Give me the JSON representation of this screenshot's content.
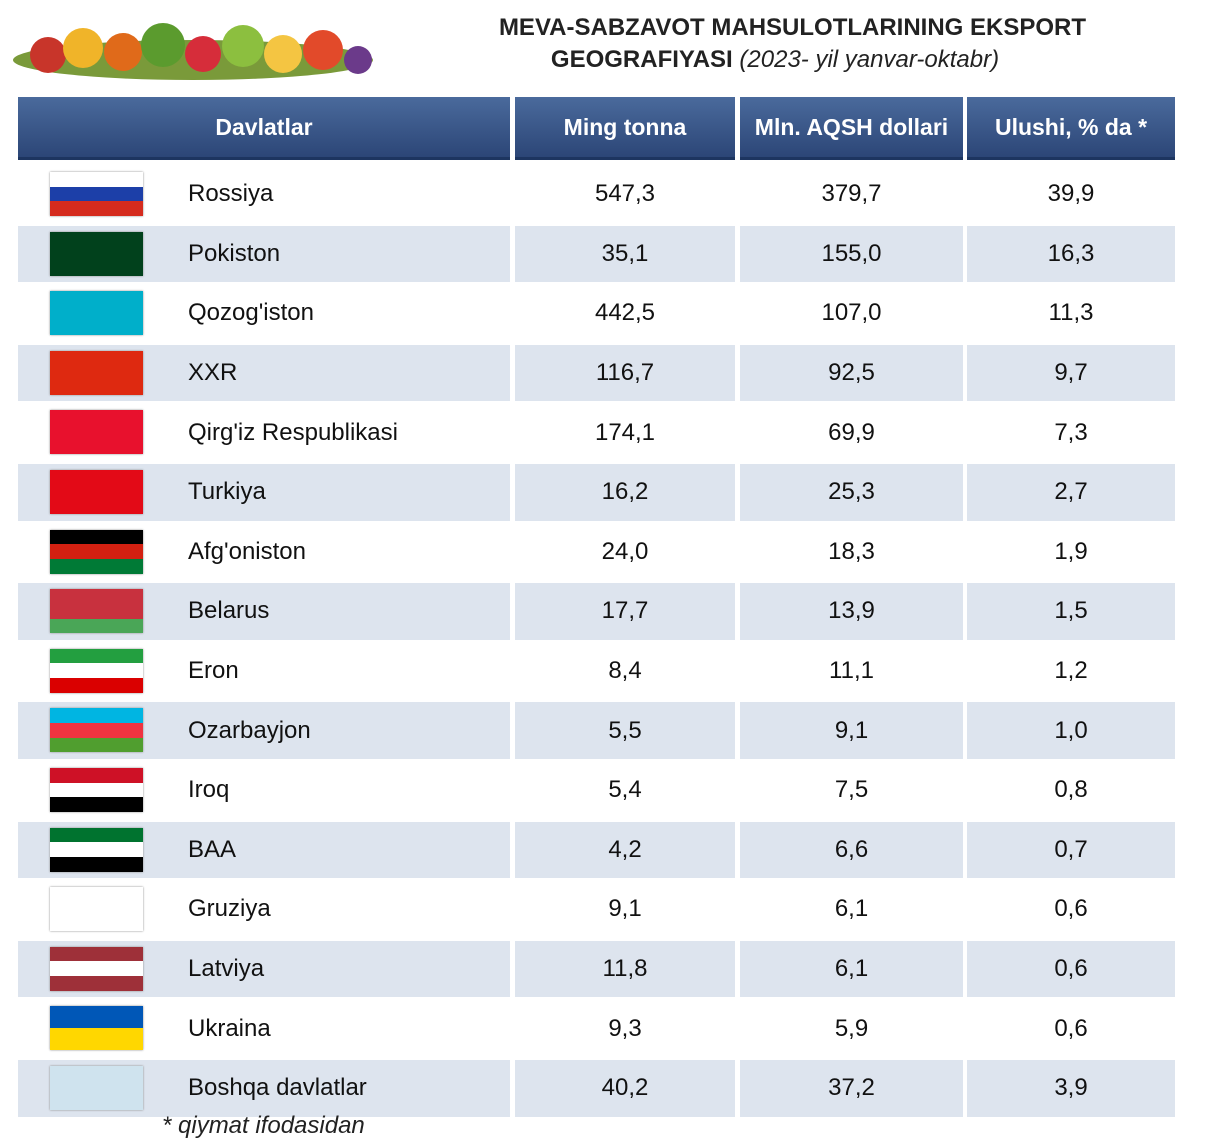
{
  "header": {
    "title_line1": "MEVA-SABZAVOT MAHSULOTLARINING EKSPORT",
    "title_line2": "GEOGRAFIYASI",
    "title_period": "(2023- yil yanvar-oktabr)"
  },
  "table": {
    "columns": [
      "Davlatlar",
      "Ming tonna",
      "Mln. AQSH dollari",
      "Ulushi, % da *"
    ],
    "rows": [
      [
        "Rossiya",
        "547,3",
        "379,7",
        "39,9"
      ],
      [
        "Pokiston",
        "35,1",
        "155,0",
        "16,3"
      ],
      [
        "Qozog'iston",
        "442,5",
        "107,0",
        "11,3"
      ],
      [
        "XXR",
        "116,7",
        "92,5",
        "9,7"
      ],
      [
        "Qirg'iz Respublikasi",
        "174,1",
        "69,9",
        "7,3"
      ],
      [
        "Turkiya",
        "16,2",
        "25,3",
        "2,7"
      ],
      [
        "Afg'oniston",
        "24,0",
        "18,3",
        "1,9"
      ],
      [
        "Belarus",
        "17,7",
        "13,9",
        "1,5"
      ],
      [
        "Eron",
        "8,4",
        "11,1",
        "1,2"
      ],
      [
        "Ozarbayjon",
        "5,5",
        "9,1",
        "1,0"
      ],
      [
        "Iroq",
        "5,4",
        "7,5",
        "0,8"
      ],
      [
        "BAA",
        "4,2",
        "6,6",
        "0,7"
      ],
      [
        "Gruziya",
        "9,1",
        "6,1",
        "0,6"
      ],
      [
        "Latviya",
        "11,8",
        "6,1",
        "0,6"
      ],
      [
        "Ukraina",
        "9,3",
        "5,9",
        "0,6"
      ],
      [
        "Boshqa davlatlar",
        "40,2",
        "37,2",
        "3,9"
      ]
    ]
  },
  "footnote": "* qiymat ifodasidan"
}
